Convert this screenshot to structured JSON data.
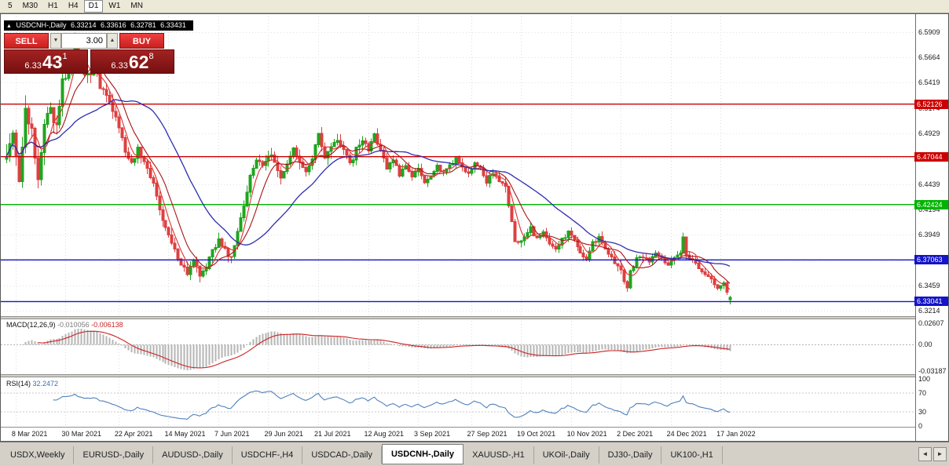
{
  "toolbar": {
    "periods": [
      "5",
      "M30",
      "H1",
      "H4",
      "D1",
      "W1",
      "MN"
    ],
    "active": "D1"
  },
  "chart_header": {
    "collapse_icon": "▲",
    "title": "USDCNH-,Daily",
    "open": "6.33214",
    "high": "6.33616",
    "low": "6.32781",
    "close": "6.33431"
  },
  "trade_panel": {
    "sell_label": "SELL",
    "buy_label": "BUY",
    "volume": "3.00",
    "spin_down": "▼",
    "spin_up": "▲",
    "sell_price": {
      "base": "6.33",
      "big": "43",
      "sup": "1"
    },
    "buy_price": {
      "base": "6.33",
      "big": "62",
      "sup": "8"
    }
  },
  "price_axis": {
    "ticks": [
      6.5909,
      6.5664,
      6.5419,
      6.5174,
      6.4929,
      6.4684,
      6.4439,
      6.4194,
      6.3949,
      6.3704,
      6.3459,
      6.3214
    ],
    "levels": [
      {
        "price": 6.52126,
        "label": "6.52126",
        "color": "#cc0000"
      },
      {
        "price": 6.47044,
        "label": "6.47044",
        "color": "#cc0000"
      },
      {
        "price": 6.42424,
        "label": "6.42424",
        "color": "#00b400"
      },
      {
        "price": 6.37063,
        "label": "6.37063",
        "color": "#1414c8"
      },
      {
        "price": 6.33041,
        "label": "6.33041",
        "color": "#1414c8"
      }
    ]
  },
  "macd_panel": {
    "label": "MACD(12,26,9)",
    "value_main": "-0.010056",
    "value_signal": "-0.006138",
    "axis_ticks": [
      "0.02607",
      "0.00",
      "-0.03187"
    ]
  },
  "rsi_panel": {
    "label": "RSI(14)",
    "value": "32.2472",
    "axis_ticks": [
      "100",
      "70",
      "30",
      "0"
    ],
    "levels": [
      70,
      30
    ]
  },
  "date_axis": {
    "labels": [
      {
        "text": "8 Mar 2021",
        "index": 3
      },
      {
        "text": "30 Mar 2021",
        "index": 19
      },
      {
        "text": "22 Apr 2021",
        "index": 36
      },
      {
        "text": "14 May 2021",
        "index": 52
      },
      {
        "text": "7 Jun 2021",
        "index": 68
      },
      {
        "text": "29 Jun 2021",
        "index": 84
      },
      {
        "text": "21 Jul 2021",
        "index": 100
      },
      {
        "text": "12 Aug 2021",
        "index": 116
      },
      {
        "text": "3 Sep 2021",
        "index": 132
      },
      {
        "text": "27 Sep 2021",
        "index": 149
      },
      {
        "text": "19 Oct 2021",
        "index": 165
      },
      {
        "text": "10 Nov 2021",
        "index": 181
      },
      {
        "text": "2 Dec 2021",
        "index": 197
      },
      {
        "text": "24 Dec 2021",
        "index": 213
      },
      {
        "text": "17 Jan 2022",
        "index": 229
      }
    ]
  },
  "tabs": {
    "items": [
      "USDX,Weekly",
      "EURUSD-,Daily",
      "AUDUSD-,Daily",
      "USDCHF-,H4",
      "USDCAD-,Daily",
      "USDCNH-,Daily",
      "XAUUSD-,H1",
      "UKOil-,Daily",
      "DJ30-,Daily",
      "UK100-,H1"
    ],
    "active": "USDCNH-,Daily",
    "scroll_left": "◄",
    "scroll_right": "►"
  },
  "chart_data": {
    "type": "candlestick",
    "symbol": "USDCNH-",
    "timeframe": "Daily",
    "last_ohlc": {
      "open": 6.33214,
      "high": 6.33616,
      "low": 6.32781,
      "close": 6.33431
    },
    "price_range": {
      "top": 6.609,
      "bottom": 6.3163
    },
    "count": 233,
    "close_anchors": [
      [
        0,
        6.468
      ],
      [
        2,
        6.492
      ],
      [
        4,
        6.45
      ],
      [
        6,
        6.512
      ],
      [
        8,
        6.496
      ],
      [
        10,
        6.452
      ],
      [
        12,
        6.502
      ],
      [
        14,
        6.512
      ],
      [
        16,
        6.498
      ],
      [
        18,
        6.545
      ],
      [
        20,
        6.552
      ],
      [
        22,
        6.575
      ],
      [
        24,
        6.556
      ],
      [
        26,
        6.548
      ],
      [
        28,
        6.556
      ],
      [
        30,
        6.539
      ],
      [
        33,
        6.522
      ],
      [
        36,
        6.498
      ],
      [
        38,
        6.476
      ],
      [
        40,
        6.464
      ],
      [
        42,
        6.478
      ],
      [
        44,
        6.466
      ],
      [
        46,
        6.452
      ],
      [
        48,
        6.434
      ],
      [
        50,
        6.41
      ],
      [
        52,
        6.396
      ],
      [
        54,
        6.38
      ],
      [
        56,
        6.366
      ],
      [
        58,
        6.358
      ],
      [
        60,
        6.37
      ],
      [
        62,
        6.356
      ],
      [
        64,
        6.364
      ],
      [
        66,
        6.38
      ],
      [
        68,
        6.39
      ],
      [
        70,
        6.379
      ],
      [
        72,
        6.371
      ],
      [
        74,
        6.396
      ],
      [
        76,
        6.426
      ],
      [
        78,
        6.452
      ],
      [
        80,
        6.468
      ],
      [
        82,
        6.46
      ],
      [
        84,
        6.473
      ],
      [
        86,
        6.466
      ],
      [
        88,
        6.453
      ],
      [
        90,
        6.463
      ],
      [
        92,
        6.476
      ],
      [
        94,
        6.468
      ],
      [
        96,
        6.458
      ],
      [
        98,
        6.47
      ],
      [
        100,
        6.49
      ],
      [
        102,
        6.466
      ],
      [
        104,
        6.479
      ],
      [
        106,
        6.488
      ],
      [
        108,
        6.476
      ],
      [
        110,
        6.463
      ],
      [
        112,
        6.477
      ],
      [
        114,
        6.488
      ],
      [
        116,
        6.477
      ],
      [
        118,
        6.491
      ],
      [
        120,
        6.477
      ],
      [
        122,
        6.461
      ],
      [
        124,
        6.469
      ],
      [
        126,
        6.454
      ],
      [
        128,
        6.461
      ],
      [
        130,
        6.451
      ],
      [
        132,
        6.459
      ],
      [
        134,
        6.447
      ],
      [
        136,
        6.451
      ],
      [
        138,
        6.461
      ],
      [
        140,
        6.454
      ],
      [
        142,
        6.461
      ],
      [
        144,
        6.469
      ],
      [
        146,
        6.461
      ],
      [
        148,
        6.454
      ],
      [
        150,
        6.466
      ],
      [
        152,
        6.458
      ],
      [
        154,
        6.447
      ],
      [
        156,
        6.454
      ],
      [
        158,
        6.447
      ],
      [
        160,
        6.441
      ],
      [
        162,
        6.407
      ],
      [
        163,
        6.391
      ],
      [
        164,
        6.385
      ],
      [
        166,
        6.394
      ],
      [
        168,
        6.401
      ],
      [
        170,
        6.391
      ],
      [
        172,
        6.397
      ],
      [
        174,
        6.387
      ],
      [
        176,
        6.381
      ],
      [
        178,
        6.391
      ],
      [
        180,
        6.397
      ],
      [
        182,
        6.389
      ],
      [
        184,
        6.379
      ],
      [
        186,
        6.371
      ],
      [
        188,
        6.389
      ],
      [
        190,
        6.391
      ],
      [
        192,
        6.381
      ],
      [
        194,
        6.371
      ],
      [
        196,
        6.367
      ],
      [
        198,
        6.351
      ],
      [
        199,
        6.344
      ],
      [
        200,
        6.361
      ],
      [
        202,
        6.371
      ],
      [
        204,
        6.375
      ],
      [
        206,
        6.369
      ],
      [
        208,
        6.377
      ],
      [
        210,
        6.371
      ],
      [
        212,
        6.367
      ],
      [
        214,
        6.374
      ],
      [
        216,
        6.379
      ],
      [
        217,
        6.391
      ],
      [
        218,
        6.377
      ],
      [
        220,
        6.371
      ],
      [
        222,
        6.364
      ],
      [
        224,
        6.357
      ],
      [
        226,
        6.351
      ],
      [
        228,
        6.344
      ],
      [
        230,
        6.347
      ],
      [
        231,
        6.339
      ],
      [
        232,
        6.3343
      ]
    ],
    "volatility_anchors": [
      [
        0,
        0.026
      ],
      [
        15,
        0.024
      ],
      [
        25,
        0.018
      ],
      [
        40,
        0.013
      ],
      [
        55,
        0.012
      ],
      [
        70,
        0.012
      ],
      [
        85,
        0.013
      ],
      [
        100,
        0.014
      ],
      [
        115,
        0.011
      ],
      [
        130,
        0.009
      ],
      [
        150,
        0.008
      ],
      [
        162,
        0.012
      ],
      [
        170,
        0.008
      ],
      [
        185,
        0.008
      ],
      [
        199,
        0.012
      ],
      [
        210,
        0.007
      ],
      [
        217,
        0.01
      ],
      [
        226,
        0.008
      ],
      [
        232,
        0.007
      ]
    ],
    "levels": [
      6.52126,
      6.47044,
      6.42424,
      6.37063,
      6.33041
    ],
    "indicators": {
      "ma_fast_period": 5,
      "ma_mid_period": 10,
      "ma_slow_period": 30,
      "macd_params": [
        12,
        26,
        9
      ],
      "macd_current": [
        -0.010056,
        -0.006138
      ],
      "macd_axis": {
        "max": 0.02607,
        "min": -0.03187
      },
      "rsi_period": 14,
      "rsi_current": 32.2472,
      "rsi_levels": [
        70,
        30
      ]
    }
  }
}
